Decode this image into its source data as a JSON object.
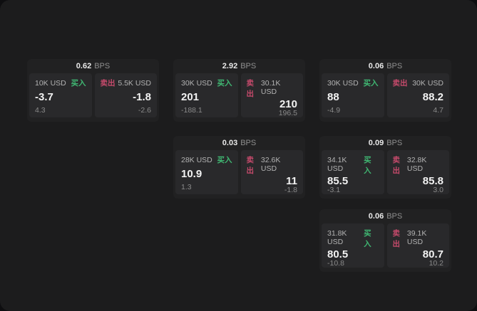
{
  "colors": {
    "buy": "#40b873",
    "sell": "#c54a6b",
    "window_bg": "#1c1c1d",
    "card_bg": "#212122",
    "panel_bg": "#29292b"
  },
  "labels": {
    "buy": "买入",
    "sell": "卖出",
    "bps_suffix": "BPS"
  },
  "cards": [
    {
      "col": 0,
      "row": 0,
      "bps": "0.62",
      "buy": {
        "amount": "10K USD",
        "value": "-3.7",
        "sub": "4.3"
      },
      "sell": {
        "amount": "5.5K USD",
        "value": "-1.8",
        "sub": "-2.6"
      }
    },
    {
      "col": 1,
      "row": 0,
      "bps": "2.92",
      "buy": {
        "amount": "30K USD",
        "value": "201",
        "sub": "-188.1"
      },
      "sell": {
        "amount": "30.1K USD",
        "value": "210",
        "sub": "196.5"
      }
    },
    {
      "col": 2,
      "row": 0,
      "bps": "0.06",
      "buy": {
        "amount": "30K USD",
        "value": "88",
        "sub": "-4.9"
      },
      "sell": {
        "amount": "30K USD",
        "value": "88.2",
        "sub": "4.7"
      }
    },
    {
      "col": 1,
      "row": 1,
      "bps": "0.03",
      "buy": {
        "amount": "28K USD",
        "value": "10.9",
        "sub": "1.3"
      },
      "sell": {
        "amount": "32.6K USD",
        "value": "11",
        "sub": "-1.8"
      }
    },
    {
      "col": 2,
      "row": 1,
      "bps": "0.09",
      "buy": {
        "amount": "34.1K USD",
        "value": "85.5",
        "sub": "-3.1"
      },
      "sell": {
        "amount": "32.8K USD",
        "value": "85.8",
        "sub": "3.0"
      }
    },
    {
      "col": 2,
      "row": 2,
      "bps": "0.06",
      "buy": {
        "amount": "31.8K USD",
        "value": "80.5",
        "sub": "-10.8"
      },
      "sell": {
        "amount": "39.1K USD",
        "value": "80.7",
        "sub": "10.2"
      }
    }
  ]
}
